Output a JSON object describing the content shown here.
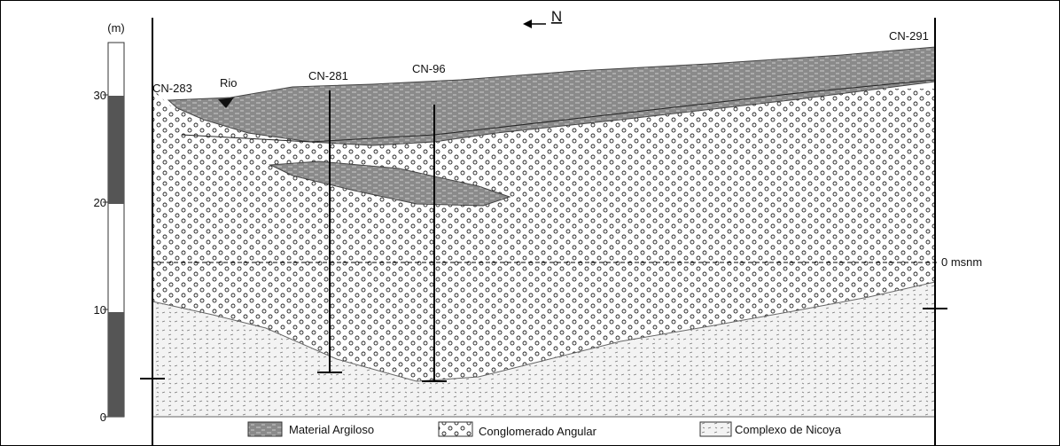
{
  "scale": {
    "unit": "(m)",
    "ticks": [
      30,
      20,
      10,
      0
    ]
  },
  "north": "N",
  "labels": {
    "cn283": "CN-283",
    "rio": "Rio",
    "cn281": "CN-281",
    "cn96": "CN-96",
    "cn291": "CN-291",
    "msnm": "0 msnm"
  },
  "legend": [
    "Material Argiloso",
    "Conglomerado Angular",
    "Complexo de Nicoya"
  ]
}
